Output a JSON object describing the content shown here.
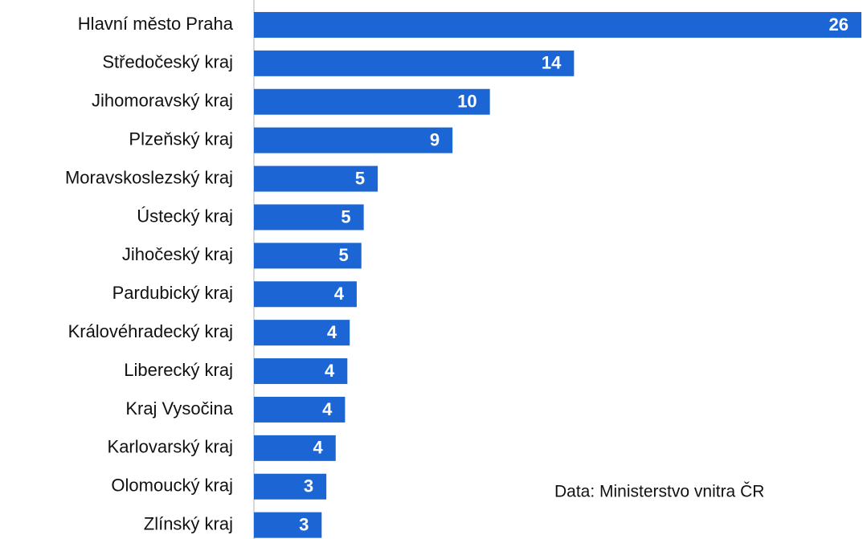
{
  "chart_data": {
    "type": "hbar",
    "categories": [
      "Hlavní město Praha",
      "Středočeský kraj",
      "Jihomoravský kraj",
      "Plzeňský kraj",
      "Moravskoslezský kraj",
      "Ústecký kraj",
      "Jihočeský kraj",
      "Pardubický kraj",
      "Královéhradecký kraj",
      "Liberecký kraj",
      "Kraj Vysočina",
      "Karlovarský kraj",
      "Olomoucký kraj",
      "Zlínský kraj"
    ],
    "values": [
      26,
      13.7,
      10.1,
      8.5,
      5.3,
      4.7,
      4.6,
      4.4,
      4.1,
      4.0,
      3.9,
      3.5,
      3.1,
      2.9
    ],
    "value_labels": [
      "26",
      "14",
      "10",
      "9",
      "5",
      "5",
      "5",
      "4",
      "4",
      "4",
      "4",
      "4",
      "3",
      "3"
    ],
    "color": "#1b66d4",
    "xlim": [
      0,
      26
    ],
    "annotation": "Data: Ministerstvo vnitra ČR"
  }
}
